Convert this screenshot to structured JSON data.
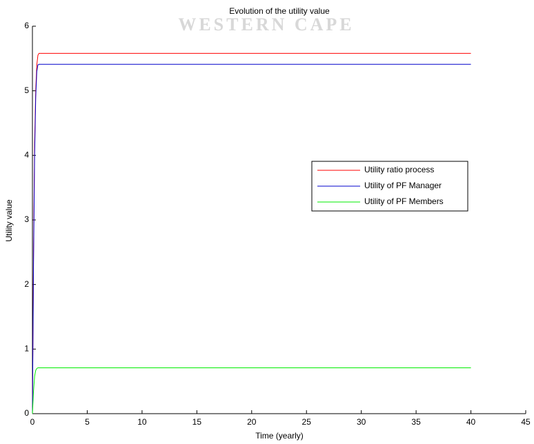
{
  "chart_data": {
    "type": "line",
    "title": "Evolution of the utility value",
    "watermark": "WESTERN CAPE",
    "xlabel": "Time (yearly)",
    "ylabel": "Utility value",
    "x": [
      0,
      0.1,
      0.2,
      0.3,
      0.4,
      0.5,
      0.6,
      0.8,
      1,
      40
    ],
    "series": [
      {
        "name": "Utility ratio process",
        "color": "#ff0000",
        "values": [
          0,
          2.5,
          4.2,
          5.0,
          5.4,
          5.55,
          5.58,
          5.58,
          5.58,
          5.58
        ]
      },
      {
        "name": "Utility of PF Manager",
        "color": "#0000cc",
        "values": [
          0,
          2.3,
          4.0,
          4.9,
          5.3,
          5.4,
          5.41,
          5.41,
          5.41,
          5.41
        ]
      },
      {
        "name": "Utility of PF Members",
        "color": "#00ee00",
        "values": [
          0,
          0.35,
          0.58,
          0.67,
          0.7,
          0.71,
          0.71,
          0.71,
          0.71,
          0.71
        ]
      }
    ],
    "xlim": [
      0,
      45
    ],
    "xticks": [
      0,
      5,
      10,
      15,
      20,
      25,
      30,
      35,
      40,
      45
    ],
    "ylim": [
      0,
      6
    ],
    "yticks": [
      0,
      1,
      2,
      3,
      4,
      5,
      6
    ],
    "legend_position": "right",
    "grid": false
  }
}
